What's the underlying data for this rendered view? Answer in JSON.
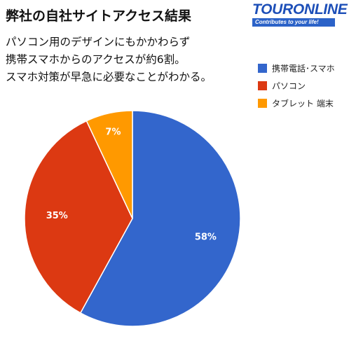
{
  "header": {
    "title": "弊社の自社サイトアクセス結果",
    "subtitle_lines": [
      "パソコン用のデザインにもかかわらず",
      "携帯スマホからのアクセスが約6割。",
      "スマホ対策が早急に必要なことがわかる。"
    ]
  },
  "logo": {
    "name": "TOURONLINE",
    "tagline": "Contributes to your life!",
    "color": "#1d4fb8"
  },
  "chart_data": {
    "type": "pie",
    "categories": [
      "携帯電話･スマホ",
      "パソコン",
      "タブレット 端末"
    ],
    "values": [
      58,
      35,
      7
    ],
    "labels": [
      "58%",
      "35%",
      "7%"
    ],
    "colors": [
      "#3366cc",
      "#dc3912",
      "#ff9900"
    ],
    "legend_position": "right"
  }
}
